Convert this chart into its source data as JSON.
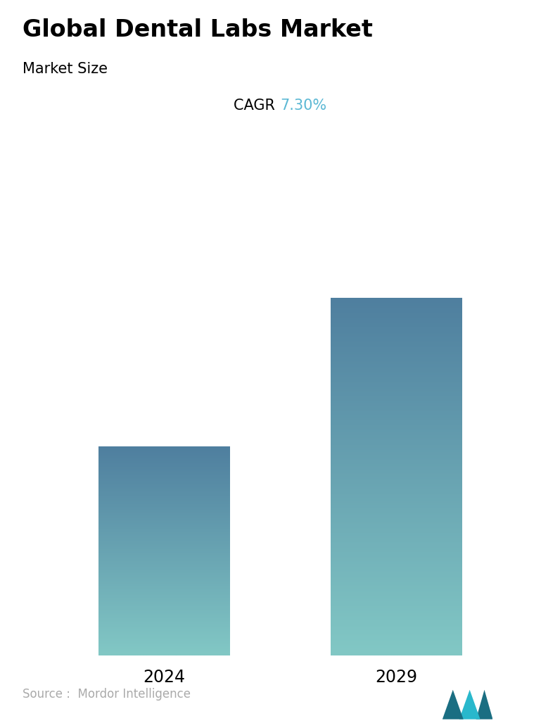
{
  "title": "Global Dental Labs Market",
  "subtitle": "Market Size",
  "cagr_label": "CAGR",
  "cagr_value": "7.30%",
  "cagr_color": "#5BB8D4",
  "categories": [
    "2024",
    "2029"
  ],
  "values": [
    0.42,
    0.72
  ],
  "bar_top_color": "#4F7F9F",
  "bar_bottom_color": "#82C8C5",
  "background_color": "#FFFFFF",
  "source_text": "Source :  Mordor Intelligence",
  "source_color": "#AAAAAA",
  "title_fontsize": 24,
  "subtitle_fontsize": 15,
  "cagr_fontsize": 15,
  "tick_fontsize": 17,
  "source_fontsize": 12,
  "bar_positions": [
    0.27,
    0.73
  ],
  "bar_width": 0.26
}
